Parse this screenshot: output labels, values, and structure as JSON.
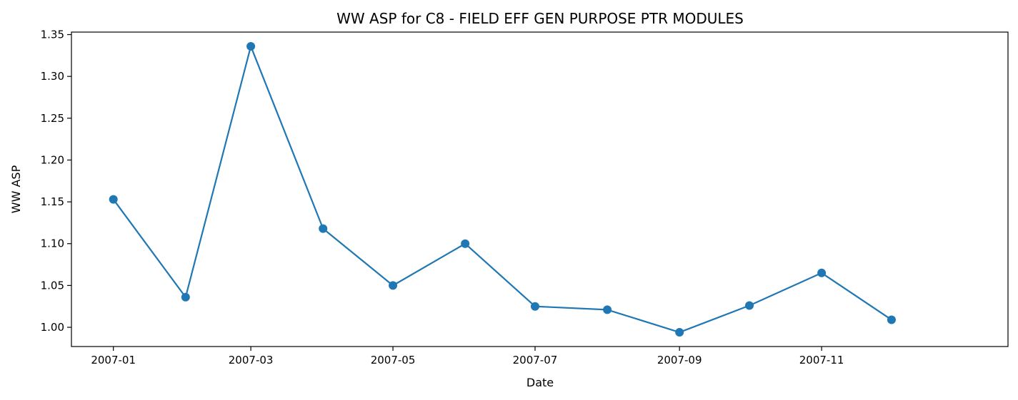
{
  "chart_data": {
    "type": "line",
    "title": "WW ASP for C8 - FIELD EFF GEN PURPOSE PTR MODULES",
    "xlabel": "Date",
    "ylabel": "WW ASP",
    "x": [
      "2007-01-01",
      "2007-02-01",
      "2007-03-01",
      "2007-04-01",
      "2007-05-01",
      "2007-06-01",
      "2007-07-01",
      "2007-08-01",
      "2007-09-01",
      "2007-10-01",
      "2007-11-01",
      "2007-12-01"
    ],
    "series": [
      {
        "values": [
          1.153,
          1.036,
          1.336,
          1.118,
          1.05,
          1.1,
          1.025,
          1.021,
          0.994,
          1.026,
          1.065,
          1.009
        ],
        "color": "#1f77b4",
        "marker": "circle"
      }
    ],
    "xlim": [
      "2006-12-14",
      "2008-01-20"
    ],
    "ylim": [
      0.977,
      1.353
    ],
    "x_ticks": [
      "2007-01-01",
      "2007-03-01",
      "2007-05-01",
      "2007-07-01",
      "2007-09-01",
      "2007-11-01"
    ],
    "x_tick_labels": [
      "2007-01",
      "2007-03",
      "2007-05",
      "2007-07",
      "2007-09",
      "2007-11"
    ],
    "y_ticks": [
      1.0,
      1.05,
      1.1,
      1.15,
      1.2,
      1.25,
      1.3,
      1.35
    ],
    "y_tick_labels": [
      "1.00",
      "1.05",
      "1.10",
      "1.15",
      "1.20",
      "1.25",
      "1.30",
      "1.35"
    ],
    "grid": false,
    "legend": "none"
  }
}
